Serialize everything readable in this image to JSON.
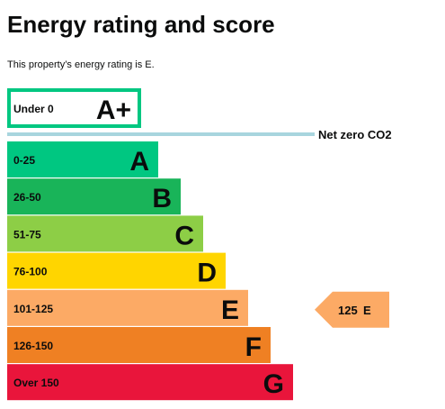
{
  "header": {
    "title": "Energy rating and score",
    "subtitle": "This property’s energy rating is E."
  },
  "chart_data": {
    "type": "bar",
    "title": "Energy rating and score",
    "net_zero_label": "Net zero CO2",
    "bands": [
      {
        "range": "Under 0",
        "letter": "A+",
        "color": "#ffffff",
        "border": "#00c781",
        "net_zero": true
      },
      {
        "range": "0-25",
        "letter": "A",
        "color": "#00c781"
      },
      {
        "range": "26-50",
        "letter": "B",
        "color": "#19b459"
      },
      {
        "range": "51-75",
        "letter": "C",
        "color": "#8dce46"
      },
      {
        "range": "76-100",
        "letter": "D",
        "color": "#ffd500"
      },
      {
        "range": "101-125",
        "letter": "E",
        "color": "#fcaa65"
      },
      {
        "range": "126-150",
        "letter": "F",
        "color": "#ef8023"
      },
      {
        "range": "Over 150",
        "letter": "G",
        "color": "#e9153b"
      }
    ],
    "current": {
      "score": 125,
      "letter": "E",
      "band": "101-125",
      "color": "#fcaa65"
    },
    "net_zero_line_color": "#a8d5de"
  }
}
